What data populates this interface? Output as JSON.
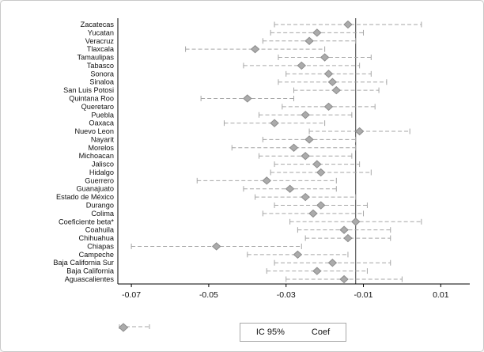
{
  "figure": {
    "background": "#ffffff",
    "border_color": "#c9c9c9"
  },
  "chart_data": {
    "type": "scatter",
    "subtype": "coefficient-plot-with-confidence-intervals",
    "orientation": "horizontal",
    "title": "",
    "xlabel": "",
    "ylabel": "",
    "xlim": [
      -0.0735,
      0.0175
    ],
    "xticks": [
      -0.07,
      -0.05,
      -0.03,
      -0.01,
      0.01
    ],
    "xtick_labels": [
      "-0.07",
      "-0.05",
      "-0.03",
      "-0.01",
      "0.01"
    ],
    "ref_line_x": -0.012,
    "grid": false,
    "legend_position": "bottom-center",
    "ci_color": "#a6a6a6",
    "marker_color": "#ababab",
    "marker_edge_color": "#8c8c8c",
    "axis_color": "#000000",
    "ref_line_color": "#3a3a3a",
    "legend": [
      {
        "label": "IC 95%",
        "symbol": "dashed-ci-line"
      },
      {
        "label": "Coef",
        "symbol": "diamond"
      }
    ],
    "categories": [
      "Zacatecas",
      "Yucatan",
      "Veracruz",
      "Tlaxcala",
      "Tamaulipas",
      "Tabasco",
      "Sonora",
      "Sinaloa",
      "San Luis Potosi",
      "Quintana Roo",
      "Queretaro",
      "Puebla",
      "Oaxaca",
      "Nuevo Leon",
      "Nayarit",
      "Morelos",
      "Michoacan",
      "Jalisco",
      "Hidalgo",
      "Guerrero",
      "Guanajuato",
      "Estado de México",
      "Durango",
      "Colima",
      "Coeficiente beta*",
      "Coahuila",
      "Chihuahua",
      "Chiapas",
      "Campeche",
      "Baja California Sur",
      "Baja California",
      "Aguascalientes"
    ],
    "series": [
      {
        "name": "Coef",
        "values": [
          -0.014,
          -0.022,
          -0.024,
          -0.038,
          -0.02,
          -0.026,
          -0.019,
          -0.018,
          -0.017,
          -0.04,
          -0.019,
          -0.025,
          -0.033,
          -0.011,
          -0.024,
          -0.028,
          -0.025,
          -0.022,
          -0.021,
          -0.035,
          -0.029,
          -0.025,
          -0.021,
          -0.023,
          -0.012,
          -0.015,
          -0.014,
          -0.048,
          -0.027,
          -0.018,
          -0.022,
          -0.015
        ]
      },
      {
        "name": "IC 95% lower",
        "values": [
          -0.033,
          -0.034,
          -0.036,
          -0.056,
          -0.032,
          -0.041,
          -0.03,
          -0.032,
          -0.028,
          -0.052,
          -0.031,
          -0.037,
          -0.046,
          -0.024,
          -0.036,
          -0.044,
          -0.037,
          -0.033,
          -0.034,
          -0.053,
          -0.041,
          -0.038,
          -0.033,
          -0.036,
          -0.029,
          -0.027,
          -0.025,
          -0.07,
          -0.04,
          -0.033,
          -0.035,
          -0.03
        ]
      },
      {
        "name": "IC 95% upper",
        "values": [
          0.005,
          -0.01,
          -0.012,
          -0.02,
          -0.008,
          -0.011,
          -0.008,
          -0.004,
          -0.006,
          -0.028,
          -0.007,
          -0.013,
          -0.02,
          0.002,
          -0.012,
          -0.012,
          -0.013,
          -0.011,
          -0.008,
          -0.017,
          -0.017,
          -0.012,
          -0.009,
          -0.01,
          0.005,
          -0.003,
          -0.003,
          -0.026,
          -0.014,
          -0.003,
          -0.009,
          0.0
        ]
      }
    ]
  }
}
